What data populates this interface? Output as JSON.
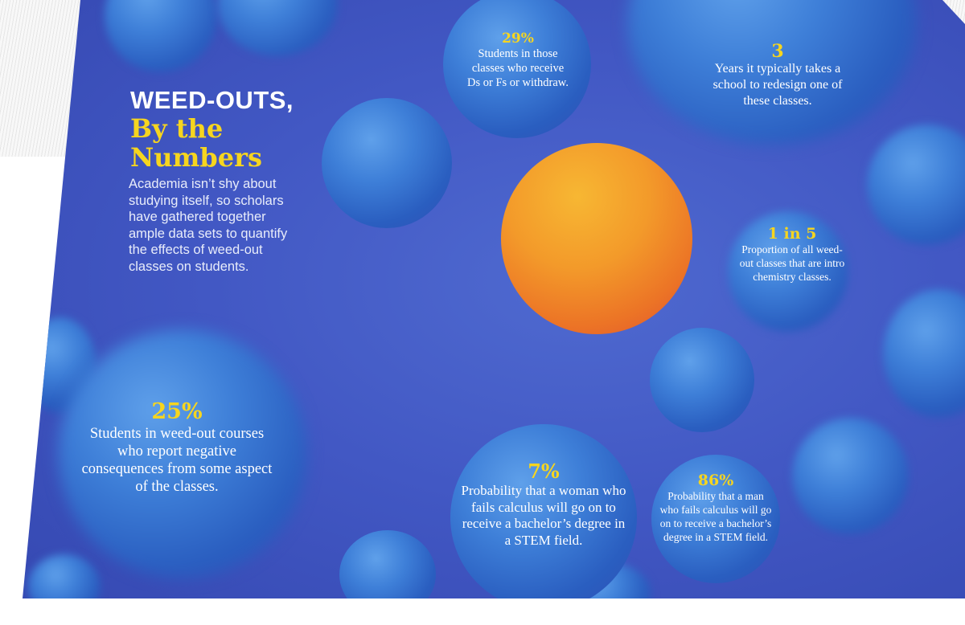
{
  "headline": {
    "line1": "WEED-OUTS,",
    "line2": "By the",
    "line3": "Numbers"
  },
  "intro": "Academia isn’t shy about studying itself, so scholars have gathered together ample data sets to quantify the effects of weed-out classes on students.",
  "stats": [
    {
      "value": "29%",
      "text": "Students in those classes who receive Ds or Fs or withdraw."
    },
    {
      "value": "3",
      "text": "Years it typically takes a school to redesign one of these classes."
    },
    {
      "value": "1 in 5",
      "text": "Proportion of all weed-out classes that are intro chemistry classes."
    },
    {
      "value": "25%",
      "text": "Students in weed-out courses who report negative consequences from some aspect of the classes."
    },
    {
      "value": "7%",
      "text": "Probability that a woman who fails calculus will go on to receive a bachelor’s degree in a STEM field."
    },
    {
      "value": "86%",
      "text": "Probability that a man who fails calculus will go on to receive a bachelor’s degree in a STEM field."
    }
  ],
  "colors": {
    "background": "#4258c4",
    "accent_yellow": "#f6d51f",
    "bubble_blue": "#3e7fd8",
    "orange_sphere": "#f39a2a"
  }
}
